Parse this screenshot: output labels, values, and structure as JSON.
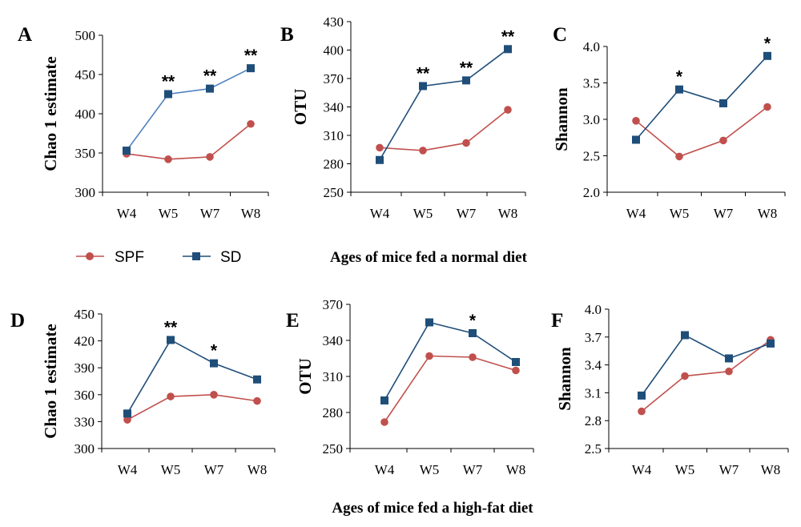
{
  "colors": {
    "SPF": "#c0504d",
    "SD": "#1f4e79",
    "SD_A": "#4f81bd"
  },
  "legend": {
    "items": [
      {
        "label": "SPF",
        "marker": "circle"
      },
      {
        "label": "SD",
        "marker": "square"
      }
    ]
  },
  "group_titles": {
    "normal": "Ages of mice fed a normal diet",
    "highfat": "Ages of mice fed a high-fat diet"
  },
  "chart_data": [
    {
      "panel": "A",
      "type": "line",
      "ylabel": "Chao 1 estimate",
      "categories": [
        "W4",
        "W5",
        "W7",
        "W8"
      ],
      "ylim": [
        300,
        500
      ],
      "yticks": [
        "300",
        "350",
        "400",
        "450",
        "500"
      ],
      "series": [
        {
          "name": "SPF",
          "values": [
            349,
            342,
            345,
            387
          ]
        },
        {
          "name": "SD",
          "values": [
            353,
            425,
            432,
            458
          ]
        }
      ],
      "annotations": [
        "",
        "**",
        "**",
        "**"
      ]
    },
    {
      "panel": "B",
      "type": "line",
      "ylabel": "OTU",
      "categories": [
        "W4",
        "W5",
        "W7",
        "W8"
      ],
      "ylim": [
        250,
        430
      ],
      "yticks": [
        "250",
        "280",
        "310",
        "340",
        "370",
        "400",
        "430"
      ],
      "series": [
        {
          "name": "SPF",
          "values": [
            297,
            294,
            302,
            337
          ]
        },
        {
          "name": "SD",
          "values": [
            284,
            362,
            368,
            401
          ]
        }
      ],
      "annotations": [
        "",
        "**",
        "**",
        "**"
      ]
    },
    {
      "panel": "C",
      "type": "line",
      "ylabel": "Shannon",
      "categories": [
        "W4",
        "W5",
        "W7",
        "W8"
      ],
      "ylim": [
        2.0,
        4.0
      ],
      "yticks": [
        "2.0",
        "2.5",
        "3.0",
        "3.5",
        "4.0"
      ],
      "series": [
        {
          "name": "SPF",
          "values": [
            2.98,
            2.49,
            2.71,
            3.17
          ]
        },
        {
          "name": "SD",
          "values": [
            2.72,
            3.41,
            3.22,
            3.87
          ]
        }
      ],
      "annotations": [
        "",
        "*",
        "",
        "*"
      ]
    },
    {
      "panel": "D",
      "type": "line",
      "ylabel": "Chao 1 estimate",
      "categories": [
        "W4",
        "W5",
        "W7",
        "W8"
      ],
      "ylim": [
        300,
        450
      ],
      "yticks": [
        "300",
        "330",
        "360",
        "390",
        "420",
        "450"
      ],
      "series": [
        {
          "name": "SPF",
          "values": [
            332,
            358,
            360,
            353
          ]
        },
        {
          "name": "SD",
          "values": [
            339,
            421,
            395,
            377
          ]
        }
      ],
      "annotations": [
        "",
        "**",
        "*",
        ""
      ]
    },
    {
      "panel": "E",
      "type": "line",
      "ylabel": "OTU",
      "categories": [
        "W4",
        "W5",
        "W7",
        "W8"
      ],
      "ylim": [
        250,
        370
      ],
      "yticks": [
        "250",
        "280",
        "310",
        "340",
        "370"
      ],
      "series": [
        {
          "name": "SPF",
          "values": [
            272,
            327,
            326,
            315
          ]
        },
        {
          "name": "SD",
          "values": [
            290,
            355,
            346,
            322
          ]
        }
      ],
      "annotations": [
        "",
        "",
        "*",
        ""
      ]
    },
    {
      "panel": "F",
      "type": "line",
      "ylabel": "Shannon",
      "categories": [
        "W4",
        "W5",
        "W7",
        "W8"
      ],
      "ylim": [
        2.5,
        4.0
      ],
      "yticks": [
        "2.5",
        "2.8",
        "3.1",
        "3.4",
        "3.7",
        "4.0"
      ],
      "series": [
        {
          "name": "SPF",
          "values": [
            2.9,
            3.28,
            3.33,
            3.67
          ]
        },
        {
          "name": "SD",
          "values": [
            3.07,
            3.72,
            3.47,
            3.63
          ]
        }
      ],
      "annotations": [
        "",
        "",
        "",
        ""
      ]
    }
  ]
}
